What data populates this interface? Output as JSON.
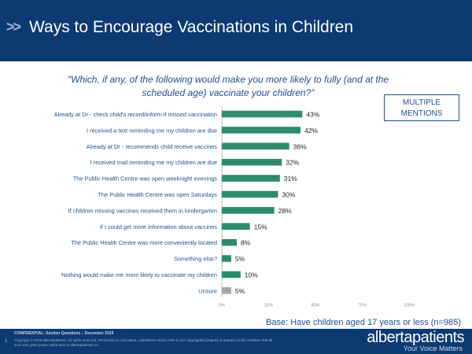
{
  "header": {
    "chevrons": ">>",
    "title": "Ways to Encourage Vaccinations in Children"
  },
  "question": "\"Which, if any, of the following would make you more likely to fully (and at the scheduled age) vaccinate your children?\"",
  "badge": {
    "line1": "MULTIPLE",
    "line2": "MENTIONS"
  },
  "base_note": "Base: Have children aged 17 years or less (n=985)",
  "footer": {
    "confidential": "CONFIDENTIAL: Section Questions  – December 2019",
    "page_number": "1",
    "copyright": "Copyright © 2019 albertapatients. All rights reserved. Permission to reproduce, redistribute and/or refer to our copyrighted property is granted on the condition that all such use gives proper attribution to albertapatients.ca.",
    "logo": "albertapatients",
    "tagline": "Your Voice Matters"
  },
  "colors": {
    "header_bg": "#0d3a72",
    "bar": "#2e8b6e",
    "bar_unsure": "#a6a6a6",
    "label_text": "#1f4f8f"
  },
  "chart_data": {
    "type": "bar",
    "orientation": "horizontal",
    "categories": [
      "Already at Dr - check child's record/inform if missed vaccination",
      "I received a text reminding me my children are due",
      "Already at Dr - recommends child receive vaccines",
      "I received mail reminding me my children are due",
      "The Public Health Centre was open weeknight evenings",
      "The Public Health Centre was open Saturdays",
      "If children missing vaccines received them in kindergarten",
      "If I could get more information about vaccines",
      "The Public Health Centre was more conveniently located",
      "Something else?",
      "Nothing would make me more likely to vaccinate my children",
      "Unsure"
    ],
    "values": [
      43,
      42,
      36,
      32,
      31,
      30,
      28,
      15,
      8,
      5,
      10,
      5
    ],
    "data_labels": [
      "43%",
      "42%",
      "36%",
      "32%",
      "31%",
      "30%",
      "28%",
      "15%",
      "8%",
      "5%",
      "10%",
      "5%"
    ],
    "xlim": [
      0,
      100
    ],
    "xticks": [
      0,
      25,
      50,
      75,
      100
    ],
    "xtick_labels": [
      "0%",
      "25%",
      "50%",
      "75%",
      "100%"
    ],
    "grid": false,
    "legend": "none"
  }
}
